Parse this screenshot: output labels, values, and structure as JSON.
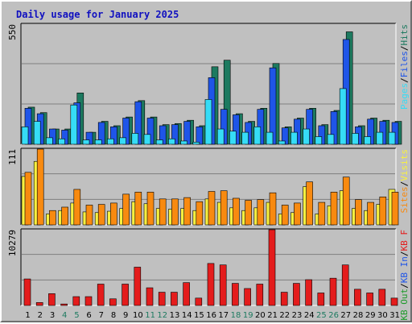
{
  "title": "Daily usage for January 2025",
  "colors": {
    "hits": "#1d7a60",
    "files": "#1f55e8",
    "pages": "#36dcf6",
    "visits": "#f8f040",
    "sites": "#f88a10",
    "kb_f": "#e41c1c",
    "kb_in": "#1f55e8",
    "kb_out": "#1d9b2a",
    "title": "#1010c0",
    "weekend": "#1d7a60",
    "weekday": "#000000",
    "panel": "#c0c0c0"
  },
  "chart_data": [
    {
      "type": "bar",
      "panel": "hits-files-pages",
      "ymax_label": "550",
      "ylim": [
        0,
        550
      ],
      "grid": true,
      "legend": [
        {
          "text": "Hits",
          "color_key": "hits"
        },
        {
          "text": "Files",
          "color_key": "files"
        },
        {
          "text": "Pages",
          "color_key": "pages"
        }
      ],
      "legend_separator": "/",
      "categories": [
        "1",
        "2",
        "3",
        "4",
        "5",
        "6",
        "7",
        "8",
        "9",
        "10",
        "11",
        "12",
        "13",
        "14",
        "15",
        "16",
        "17",
        "18",
        "19",
        "20",
        "21",
        "22",
        "23",
        "24",
        "25",
        "26",
        "27",
        "28",
        "29",
        "30",
        "31"
      ],
      "series": [
        {
          "name": "Hits",
          "color_key": "hits",
          "values": [
            170,
            145,
            70,
            70,
            235,
            55,
            105,
            85,
            125,
            200,
            125,
            90,
            95,
            110,
            85,
            355,
            385,
            140,
            105,
            165,
            370,
            80,
            120,
            165,
            90,
            155,
            515,
            85,
            120,
            110,
            105
          ]
        },
        {
          "name": "Files",
          "color_key": "files",
          "values": [
            165,
            140,
            70,
            65,
            190,
            55,
            100,
            80,
            120,
            195,
            120,
            85,
            90,
            105,
            80,
            305,
            160,
            135,
            100,
            160,
            350,
            75,
            115,
            160,
            85,
            150,
            480,
            80,
            115,
            105,
            100
          ]
        },
        {
          "name": "Pages",
          "color_key": "pages",
          "values": [
            80,
            105,
            30,
            25,
            180,
            20,
            20,
            25,
            30,
            50,
            45,
            20,
            25,
            15,
            10,
            205,
            70,
            60,
            55,
            80,
            55,
            15,
            55,
            70,
            35,
            45,
            255,
            50,
            35,
            55,
            55
          ]
        }
      ]
    },
    {
      "type": "bar",
      "panel": "visits-sites",
      "ymax_label": "111",
      "ylim": [
        0,
        111
      ],
      "grid": true,
      "legend": [
        {
          "text": "Visits",
          "color_key": "visits"
        },
        {
          "text": "Sites",
          "color_key": "sites"
        }
      ],
      "legend_separator": "/",
      "categories": [
        "1",
        "2",
        "3",
        "4",
        "5",
        "6",
        "7",
        "8",
        "9",
        "10",
        "11",
        "12",
        "13",
        "14",
        "15",
        "16",
        "17",
        "18",
        "19",
        "20",
        "21",
        "22",
        "23",
        "24",
        "25",
        "26",
        "27",
        "28",
        "29",
        "30",
        "31"
      ],
      "series": [
        {
          "name": "Visits",
          "color_key": "visits",
          "values": [
            71,
            93,
            16,
            21,
            32,
            19,
            18,
            20,
            24,
            34,
            31,
            24,
            23,
            24,
            21,
            38,
            33,
            25,
            21,
            25,
            33,
            16,
            18,
            56,
            16,
            28,
            50,
            24,
            21,
            30,
            52
          ]
        },
        {
          "name": "Sites",
          "color_key": "sites",
          "values": [
            77,
            111,
            21,
            26,
            52,
            29,
            30,
            32,
            45,
            48,
            48,
            38,
            38,
            40,
            34,
            49,
            50,
            39,
            36,
            37,
            47,
            29,
            32,
            63,
            33,
            48,
            70,
            37,
            33,
            41,
            48
          ]
        }
      ]
    },
    {
      "type": "bar",
      "panel": "kbytes",
      "ymax_label": "10279",
      "ylim": [
        0,
        10279
      ],
      "grid": true,
      "legend": [
        {
          "text": "KB F",
          "color_key": "kb_f"
        },
        {
          "text": "KB In",
          "color_key": "kb_in"
        },
        {
          "text": "KB Out",
          "color_key": "kb_out"
        }
      ],
      "legend_separator": "/",
      "categories": [
        "1",
        "2",
        "3",
        "4",
        "5",
        "6",
        "7",
        "8",
        "9",
        "10",
        "11",
        "12",
        "13",
        "14",
        "15",
        "16",
        "17",
        "18",
        "19",
        "20",
        "21",
        "22",
        "23",
        "24",
        "25",
        "26",
        "27",
        "28",
        "29",
        "30",
        "31"
      ],
      "series": [
        {
          "name": "KB F",
          "color_key": "kb_f",
          "values": [
            3600,
            400,
            1600,
            200,
            1200,
            1200,
            2900,
            900,
            2900,
            5200,
            2400,
            1800,
            1800,
            3100,
            1000,
            5700,
            5500,
            3000,
            2300,
            2900,
            10279,
            1800,
            3000,
            3500,
            1700,
            3700,
            5500,
            2200,
            1700,
            2200,
            1000
          ]
        }
      ]
    }
  ],
  "days": [
    {
      "label": "1",
      "weekend": false
    },
    {
      "label": "2",
      "weekend": false
    },
    {
      "label": "3",
      "weekend": false
    },
    {
      "label": "4",
      "weekend": true
    },
    {
      "label": "5",
      "weekend": true
    },
    {
      "label": "6",
      "weekend": false
    },
    {
      "label": "7",
      "weekend": false
    },
    {
      "label": "8",
      "weekend": false
    },
    {
      "label": "9",
      "weekend": false
    },
    {
      "label": "10",
      "weekend": false
    },
    {
      "label": "11",
      "weekend": true
    },
    {
      "label": "12",
      "weekend": true
    },
    {
      "label": "13",
      "weekend": false
    },
    {
      "label": "14",
      "weekend": false
    },
    {
      "label": "15",
      "weekend": false
    },
    {
      "label": "16",
      "weekend": false
    },
    {
      "label": "17",
      "weekend": false
    },
    {
      "label": "18",
      "weekend": true
    },
    {
      "label": "19",
      "weekend": true
    },
    {
      "label": "20",
      "weekend": false
    },
    {
      "label": "21",
      "weekend": false
    },
    {
      "label": "22",
      "weekend": false
    },
    {
      "label": "23",
      "weekend": false
    },
    {
      "label": "24",
      "weekend": false
    },
    {
      "label": "25",
      "weekend": true
    },
    {
      "label": "26",
      "weekend": true
    },
    {
      "label": "27",
      "weekend": false
    },
    {
      "label": "28",
      "weekend": false
    },
    {
      "label": "29",
      "weekend": false
    },
    {
      "label": "30",
      "weekend": false
    },
    {
      "label": "31",
      "weekend": false
    }
  ]
}
